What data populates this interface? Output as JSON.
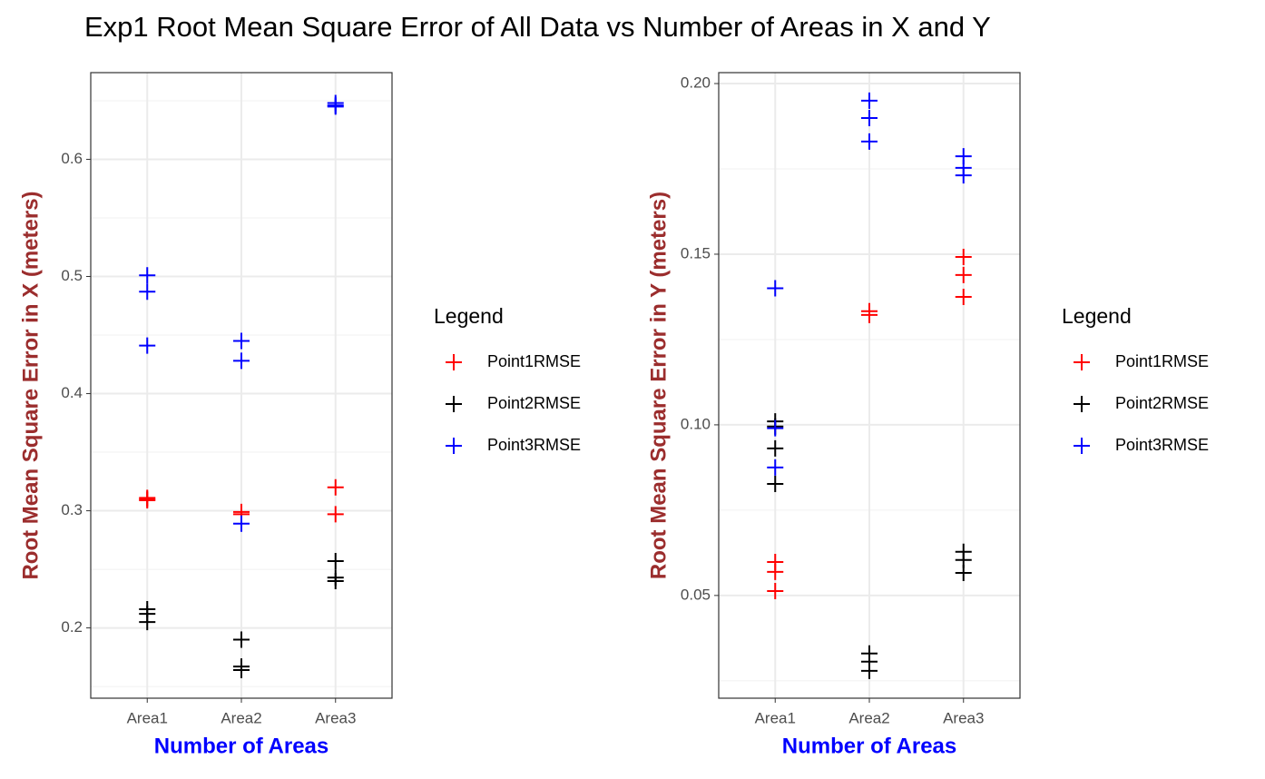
{
  "title": "Exp1 Root Mean Square Error of All Data vs Number of Areas in X and Y",
  "chart_data": [
    {
      "type": "scatter",
      "xlabel": "Number of Areas",
      "ylabel": "Root Mean Square Error in X (meters)",
      "xlabel_color": "#0000ff",
      "ylabel_color": "#9b2d2d",
      "categories": [
        "Area1",
        "Area2",
        "Area3"
      ],
      "ylim": [
        0.14,
        0.674
      ],
      "yticks": [
        0.2,
        0.3,
        0.4,
        0.5,
        0.6
      ],
      "minor_yticks": [
        0.15,
        0.25,
        0.35,
        0.45,
        0.55,
        0.65
      ],
      "grid": true,
      "legend_title": "Legend",
      "legend_position": "right",
      "series": [
        {
          "name": "Point1RMSE",
          "color": "#ff0000",
          "x": [
            "Area1",
            "Area1",
            "Area1",
            "Area2",
            "Area2",
            "Area3",
            "Area3"
          ],
          "values": [
            0.31,
            0.309,
            0.311,
            0.299,
            0.297,
            0.32,
            0.297
          ]
        },
        {
          "name": "Point2RMSE",
          "color": "#000000",
          "x": [
            "Area1",
            "Area1",
            "Area1",
            "Area2",
            "Area2",
            "Area2",
            "Area3",
            "Area3",
            "Area3"
          ],
          "values": [
            0.216,
            0.212,
            0.205,
            0.19,
            0.167,
            0.164,
            0.257,
            0.243,
            0.24
          ]
        },
        {
          "name": "Point3RMSE",
          "color": "#0000ff",
          "x": [
            "Area1",
            "Area1",
            "Area1",
            "Area2",
            "Area2",
            "Area2",
            "Area3",
            "Area3",
            "Area3"
          ],
          "values": [
            0.501,
            0.487,
            0.441,
            0.445,
            0.428,
            0.289,
            0.648,
            0.646,
            0.645
          ]
        }
      ]
    },
    {
      "type": "scatter",
      "xlabel": "Number of Areas",
      "ylabel": "Root Mean Square Error in Y (meters)",
      "xlabel_color": "#0000ff",
      "ylabel_color": "#9b2d2d",
      "categories": [
        "Area1",
        "Area2",
        "Area3"
      ],
      "ylim": [
        0.0199,
        0.2032
      ],
      "yticks": [
        0.05,
        {
          "value": 0.1,
          "label": "0.10"
        },
        0.15,
        {
          "value": 0.2,
          "label": "0.20"
        }
      ],
      "minor_yticks": [
        0.025,
        0.075,
        0.125,
        0.175
      ],
      "grid": true,
      "legend_title": "Legend",
      "legend_position": "right",
      "series": [
        {
          "name": "Point1RMSE",
          "color": "#ff0000",
          "x": [
            "Area1",
            "Area1",
            "Area1",
            "Area2",
            "Area2",
            "Area3",
            "Area3",
            "Area3"
          ],
          "values": [
            0.0598,
            0.0569,
            0.0513,
            0.1333,
            0.1322,
            0.1492,
            0.1439,
            0.1375
          ]
        },
        {
          "name": "Point2RMSE",
          "color": "#000000",
          "x": [
            "Area1",
            "Area1",
            "Area1",
            "Area1",
            "Area2",
            "Area2",
            "Area2",
            "Area3",
            "Area3",
            "Area3"
          ],
          "values": [
            0.101,
            0.0995,
            0.0931,
            0.0827,
            0.033,
            0.0306,
            0.0279,
            0.0628,
            0.0604,
            0.0566
          ]
        },
        {
          "name": "Point3RMSE",
          "color": "#0000ff",
          "x": [
            "Area1",
            "Area1",
            "Area1",
            "Area2",
            "Area2",
            "Area2",
            "Area3",
            "Area3",
            "Area3"
          ],
          "values": [
            0.14,
            0.099,
            0.0875,
            0.195,
            0.1899,
            0.183,
            0.1787,
            0.1753,
            0.1731
          ]
        }
      ]
    }
  ]
}
